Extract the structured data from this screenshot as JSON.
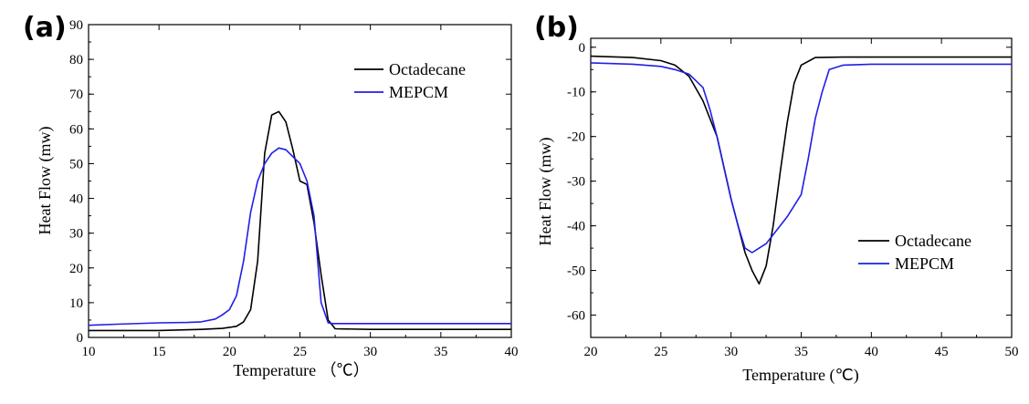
{
  "chart_data": [
    {
      "type": "line",
      "panel_label": "(a)",
      "title": "",
      "xlabel": "Temperature （℃）",
      "ylabel": "Heat Flow (mw)",
      "xlim": [
        10,
        40
      ],
      "ylim": [
        0,
        90
      ],
      "xticks": [
        10,
        15,
        20,
        25,
        30,
        35,
        40
      ],
      "yticks": [
        0,
        10,
        20,
        30,
        40,
        50,
        60,
        70,
        80,
        90
      ],
      "legend_position": "top-right",
      "series": [
        {
          "name": "Octadecane",
          "color": "#000000",
          "x": [
            10,
            15,
            18,
            19.5,
            20.5,
            21,
            21.5,
            22,
            22.5,
            23,
            23.5,
            24,
            24.5,
            25,
            25.5,
            26,
            26.5,
            27,
            27.5,
            30,
            35,
            40
          ],
          "y": [
            2,
            2,
            2.3,
            2.6,
            3.2,
            4.5,
            8,
            22,
            53,
            64,
            65,
            62,
            54,
            45,
            44,
            33,
            18,
            5,
            2.5,
            2.3,
            2.3,
            2.3
          ]
        },
        {
          "name": "MEPCM",
          "color": "#1f1fe6",
          "x": [
            10,
            12,
            15,
            17,
            18,
            19,
            19.5,
            20,
            20.5,
            21,
            21.5,
            22,
            22.5,
            23,
            23.5,
            24,
            24.5,
            25,
            25.5,
            26,
            26.5,
            27,
            27.3,
            30,
            35,
            40
          ],
          "y": [
            3.5,
            3.8,
            4.2,
            4.3,
            4.5,
            5.3,
            6.5,
            8,
            12,
            22,
            36,
            45,
            50,
            53,
            54.5,
            54,
            52,
            50,
            45,
            35,
            10,
            4.2,
            4,
            4,
            4,
            4
          ]
        }
      ]
    },
    {
      "type": "line",
      "panel_label": "(b)",
      "title": "",
      "xlabel": "Temperature (℃)",
      "ylabel": "Heat Flow (mw)",
      "xlim": [
        20,
        50
      ],
      "ylim": [
        -65,
        2
      ],
      "xticks": [
        20,
        25,
        30,
        35,
        40,
        45,
        50
      ],
      "yticks": [
        0,
        -10,
        -20,
        -30,
        -40,
        -50,
        -60
      ],
      "legend_position": "bottom-right",
      "series": [
        {
          "name": "Octadecane",
          "color": "#000000",
          "x": [
            20,
            23,
            25,
            26,
            27,
            28,
            29,
            30,
            30.5,
            31,
            31.5,
            32,
            32.5,
            33,
            33.5,
            34,
            34.5,
            35,
            36,
            38,
            40,
            45,
            50
          ],
          "y": [
            -2,
            -2.3,
            -3,
            -4,
            -6.5,
            -12,
            -20,
            -34,
            -40,
            -46,
            -50,
            -53,
            -49,
            -40,
            -28,
            -17,
            -8,
            -4,
            -2.3,
            -2.2,
            -2.2,
            -2.2,
            -2.2
          ]
        },
        {
          "name": "MEPCM",
          "color": "#1f1fe6",
          "x": [
            20,
            23,
            25,
            26,
            27,
            28,
            28.5,
            29,
            30,
            30.5,
            31,
            31.5,
            32,
            32.5,
            33,
            34,
            35,
            35.5,
            36,
            36.5,
            37,
            38,
            40,
            45,
            50
          ],
          "y": [
            -3.5,
            -3.8,
            -4.3,
            -5,
            -6,
            -9,
            -14,
            -20,
            -34,
            -40,
            -45,
            -46,
            -45,
            -44,
            -42,
            -38,
            -33,
            -25,
            -16,
            -10,
            -5,
            -4,
            -3.8,
            -3.8,
            -3.8
          ]
        }
      ]
    }
  ]
}
